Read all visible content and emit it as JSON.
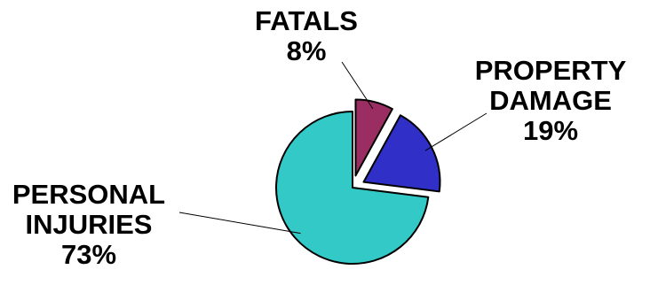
{
  "chart_data": {
    "type": "pie",
    "title": "",
    "slices": [
      {
        "label_lines": [
          "FATALS"
        ],
        "percent_label": "8%",
        "value": 8,
        "color": "#9a2e63",
        "exploded": true
      },
      {
        "label_lines": [
          "PROPERTY",
          "DAMAGE"
        ],
        "percent_label": "19%",
        "value": 19,
        "color": "#3030c8",
        "exploded": true
      },
      {
        "label_lines": [
          "PERSONAL",
          "INJURIES"
        ],
        "percent_label": "73%",
        "value": 73,
        "color": "#33c9c6",
        "exploded": false
      }
    ],
    "legend": "none",
    "labels": "outside with leader lines"
  }
}
